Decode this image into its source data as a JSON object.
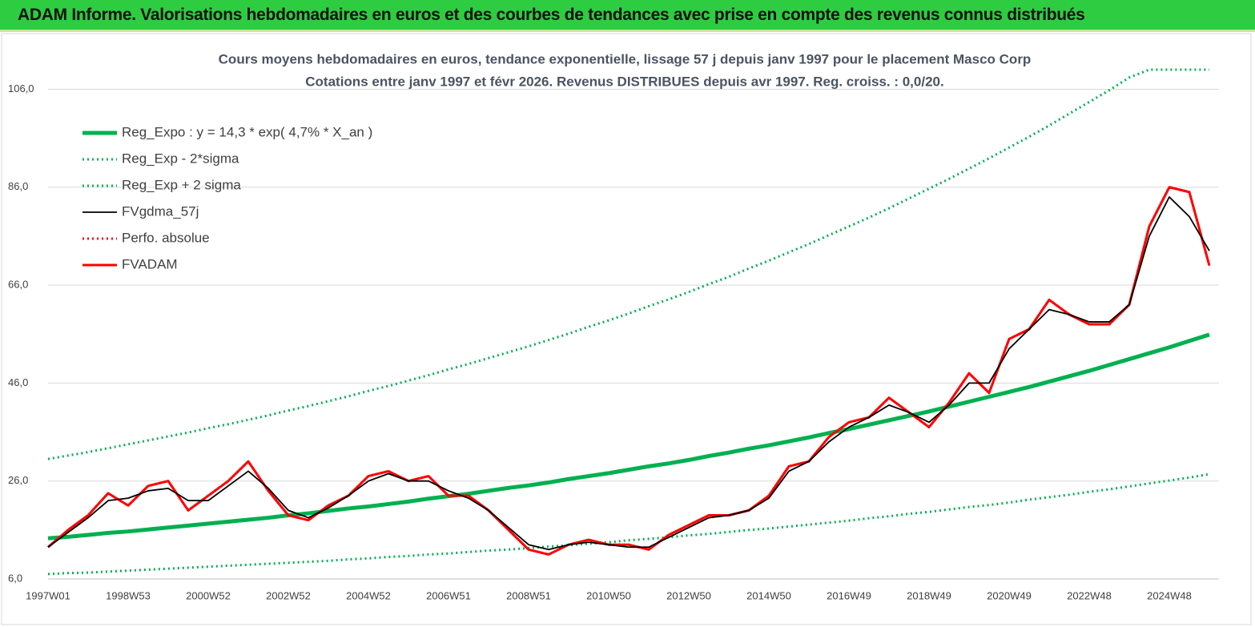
{
  "header": {
    "title": "ADAM Informe. Valorisations hebdomadaires en euros et des courbes de tendances avec prise en compte des revenus connus distribués"
  },
  "chart_data": {
    "type": "line",
    "title": "Cours moyens hebdomadaires en euros, tendance exponentielle, lissage 57 j depuis janv 1997 pour le placement Masco Corp",
    "subtitle": "Cotations entre janv 1997 et févr 2026. Revenus DISTRIBUES depuis avr 1997. Reg. croiss. : 0,0/20.",
    "categories": [
      "1997W01",
      null,
      null,
      null,
      "1998W53",
      null,
      null,
      null,
      "2000W52",
      null,
      null,
      null,
      "2002W52",
      null,
      null,
      null,
      "2004W52",
      null,
      null,
      null,
      "2006W51",
      null,
      null,
      null,
      "2008W51",
      null,
      null,
      null,
      "2010W50",
      null,
      null,
      null,
      "2012W50",
      null,
      null,
      null,
      "2014W50",
      null,
      null,
      null,
      "2016W49",
      null,
      null,
      null,
      "2018W49",
      null,
      null,
      null,
      "2020W49",
      null,
      null,
      null,
      "2022W48",
      null,
      null,
      null,
      "2024W48",
      null,
      null
    ],
    "ylim": [
      6,
      110
    ],
    "yticks": [
      {
        "value": 6,
        "label": "6,0"
      },
      {
        "value": 26,
        "label": "26,0"
      },
      {
        "value": 46,
        "label": "46,0"
      },
      {
        "value": 66,
        "label": "66,0"
      },
      {
        "value": 86,
        "label": "86,0"
      },
      {
        "value": 106,
        "label": "106,0"
      }
    ],
    "grid": true,
    "legend": "upper left",
    "series": [
      {
        "name": "Reg_Expo : y = 14,3 * exp( 4,7% *  X_an )",
        "color": "#00b050",
        "line_style": "solid",
        "values": [
          14.3,
          14.6,
          15.0,
          15.4,
          15.7,
          16.1,
          16.5,
          16.9,
          17.3,
          17.7,
          18.1,
          18.5,
          19.0,
          19.4,
          19.9,
          20.4,
          20.8,
          21.3,
          21.8,
          22.4,
          22.9,
          23.4,
          24.0,
          24.6,
          25.1,
          25.7,
          26.4,
          27.0,
          27.6,
          28.3,
          29.0,
          29.6,
          30.3,
          31.1,
          31.8,
          32.6,
          33.3,
          34.1,
          34.9,
          35.8,
          36.6,
          37.5,
          38.4,
          39.3,
          40.2,
          41.2,
          42.2,
          43.2,
          44.2,
          45.2,
          46.3,
          47.4,
          48.5,
          49.7,
          50.9,
          52.1,
          53.3,
          54.6,
          55.9
        ]
      },
      {
        "name": "Reg_Exp - 2*sigma",
        "color": "#00b050",
        "line_style": "dotted",
        "values": [
          7.0,
          7.2,
          7.3,
          7.5,
          7.7,
          7.9,
          8.1,
          8.3,
          8.5,
          8.7,
          8.9,
          9.1,
          9.3,
          9.5,
          9.7,
          10.0,
          10.2,
          10.5,
          10.7,
          11.0,
          11.2,
          11.5,
          11.8,
          12.0,
          12.3,
          12.6,
          12.9,
          13.2,
          13.5,
          13.9,
          14.2,
          14.5,
          14.9,
          15.2,
          15.6,
          16.0,
          16.3,
          16.7,
          17.1,
          17.5,
          17.9,
          18.4,
          18.8,
          19.3,
          19.7,
          20.2,
          20.7,
          21.1,
          21.6,
          22.2,
          22.7,
          23.2,
          23.8,
          24.3,
          24.9,
          25.5,
          26.1,
          26.7,
          27.4
        ]
      },
      {
        "name": "Reg_Exp + 2 sigma",
        "color": "#00b050",
        "line_style": "dotted",
        "values": [
          30.5,
          31.2,
          31.9,
          32.7,
          33.5,
          34.3,
          35.1,
          35.9,
          36.8,
          37.6,
          38.5,
          39.4,
          40.4,
          41.3,
          42.3,
          43.3,
          44.4,
          45.4,
          46.5,
          47.6,
          48.8,
          49.9,
          51.1,
          52.3,
          53.5,
          54.8,
          56.1,
          57.5,
          58.8,
          60.2,
          61.7,
          63.1,
          64.6,
          66.2,
          67.7,
          69.4,
          71.0,
          72.7,
          74.4,
          76.2,
          78.0,
          79.8,
          81.7,
          83.7,
          85.7,
          87.7,
          89.8,
          91.9,
          94.1,
          96.3,
          98.6,
          101.0,
          103.4,
          105.8,
          108.4,
          110,
          110,
          110,
          110
        ]
      },
      {
        "name": "FVgdma_57j",
        "color": "#000000",
        "line_style": "solid",
        "values": [
          12.5,
          15.5,
          18.5,
          22,
          22.5,
          24,
          24.5,
          22,
          22,
          25,
          28,
          24.5,
          20,
          18.5,
          20.5,
          23,
          26,
          27.5,
          26,
          26,
          24,
          22.5,
          20,
          16.5,
          13,
          12,
          13,
          13.5,
          13,
          12.5,
          12.5,
          14.5,
          16.5,
          18.5,
          19,
          20,
          22.5,
          28,
          30,
          34,
          37,
          39,
          41.5,
          40,
          38,
          41.5,
          46,
          46,
          53,
          57,
          61,
          60,
          58.5,
          58.5,
          62,
          76,
          84,
          80,
          73
        ]
      },
      {
        "name": "Perfo. absolue",
        "color": "#ff0000",
        "line_style": "dotted",
        "values": [
          12.5,
          16,
          19,
          23.5,
          21,
          25,
          26,
          20,
          23,
          26,
          30,
          24,
          19,
          18,
          21,
          23,
          27,
          28,
          26,
          27,
          23,
          23,
          20,
          16,
          12,
          11,
          13,
          14,
          13,
          13,
          12,
          15,
          17,
          19,
          19,
          20,
          23,
          29,
          30,
          35,
          38,
          39,
          43,
          40,
          37,
          42,
          48,
          44,
          55,
          57,
          63,
          60,
          58,
          58,
          62,
          78,
          86,
          85,
          70
        ]
      },
      {
        "name": "FVADAM",
        "color": "#ff0000",
        "line_style": "solid",
        "values": [
          12.5,
          16,
          19,
          23.5,
          21,
          25,
          26,
          20,
          23,
          26,
          30,
          24,
          19,
          18,
          21,
          23,
          27,
          28,
          26,
          27,
          23,
          23,
          20,
          16,
          12,
          11,
          13,
          14,
          13,
          13,
          12,
          15,
          17,
          19,
          19,
          20,
          23,
          29,
          30,
          35,
          38,
          39,
          43,
          40,
          37,
          42,
          48,
          44,
          55,
          57,
          63,
          60,
          58,
          58,
          62,
          78,
          86,
          85,
          70
        ]
      }
    ]
  }
}
